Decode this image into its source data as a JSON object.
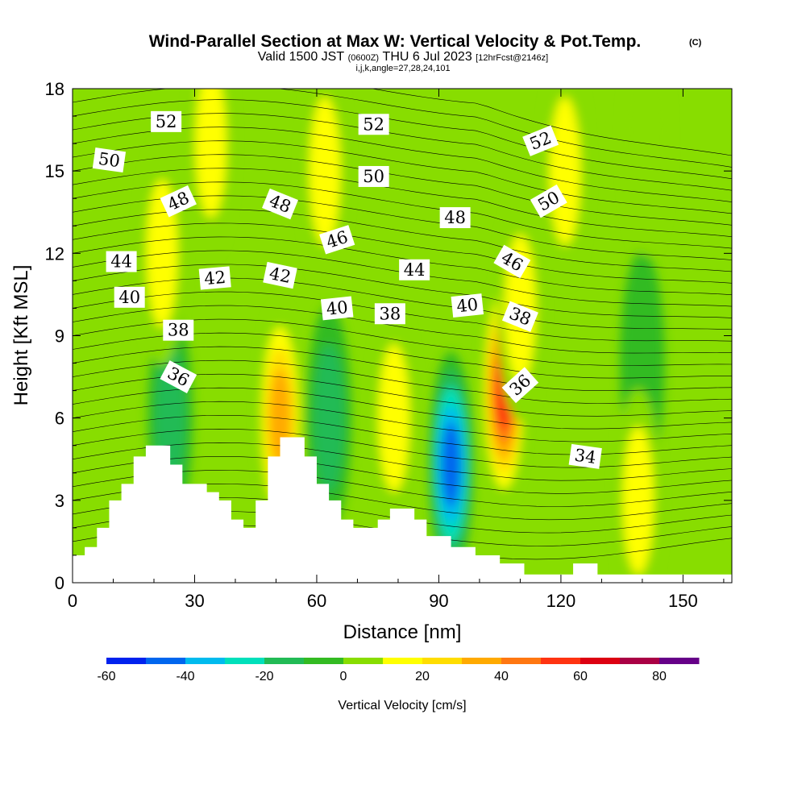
{
  "chart_data": {
    "type": "heatmap",
    "title": "Wind-Parallel Section at Max W: Vertical Velocity & Pot.Temp.",
    "title_suffix": "(C)",
    "subtitle": {
      "valid": "Valid 1500 JST",
      "utc": "(0600Z)",
      "date": "THU 6 Jul 2023",
      "forecast": "[12hrFcst@2146z]"
    },
    "meta_line": "i,j,k,angle=27,28,24,101",
    "xlabel": "Distance [nm]",
    "ylabel": "Height [Kft MSL]",
    "xlim": [
      0,
      162
    ],
    "ylim": [
      0,
      18
    ],
    "x_ticks": [
      "0",
      "30",
      "60",
      "90",
      "120",
      "150"
    ],
    "y_ticks": [
      "0",
      "3",
      "6",
      "9",
      "12",
      "15",
      "18"
    ],
    "colorbar": {
      "label": "Vertical Velocity [cm/s]",
      "tick_labels": [
        "-60",
        "-40",
        "-20",
        "0",
        "20",
        "40",
        "60",
        "80"
      ],
      "levels": [
        -60,
        -50,
        -40,
        -30,
        -20,
        -10,
        0,
        10,
        20,
        30,
        40,
        50,
        60,
        70,
        80,
        90
      ],
      "colors": [
        "#0022ee",
        "#0066ee",
        "#00bbee",
        "#00e0bb",
        "#22bb55",
        "#33bb22",
        "#88dd00",
        "#ffff00",
        "#ffdd00",
        "#ffaa00",
        "#ff7711",
        "#ff3311",
        "#dd0011",
        "#aa0044",
        "#660088"
      ]
    },
    "shading_labels": [
      "-60",
      "-40",
      "-20",
      "0",
      "20",
      "40",
      "60",
      "80"
    ],
    "updrafts_downdrafts": [
      {
        "x": 51,
        "z": 6,
        "w": 45
      },
      {
        "x": 106,
        "z": 7,
        "w": 65
      },
      {
        "x": 79,
        "z": 6,
        "w": 25
      },
      {
        "x": 93,
        "z": 4.3,
        "w": -55
      },
      {
        "x": 63,
        "z": 6,
        "w": -20
      },
      {
        "x": 24,
        "z": 6,
        "w": -25
      },
      {
        "x": 140,
        "z": 8,
        "w": -18
      },
      {
        "x": 110,
        "z": 10,
        "w": 20
      },
      {
        "x": 34,
        "z": 16,
        "w": 20
      },
      {
        "x": 22,
        "z": 12,
        "w": 20
      },
      {
        "x": 62,
        "z": 15,
        "w": 20
      },
      {
        "x": 121,
        "z": 15,
        "w": 20
      },
      {
        "x": 141,
        "z": 16,
        "w": 18
      },
      {
        "x": 139,
        "z": 3,
        "w": 20
      }
    ],
    "theta_contour_labels": [
      {
        "text": "52",
        "x": 23,
        "z": 16.8,
        "angle": 0
      },
      {
        "text": "52",
        "x": 74,
        "z": 16.7,
        "angle": 0
      },
      {
        "text": "52",
        "x": 115,
        "z": 16.1,
        "angle": -22
      },
      {
        "text": "50",
        "x": 9,
        "z": 15.4,
        "angle": 8
      },
      {
        "text": "50",
        "x": 74,
        "z": 14.8,
        "angle": 0
      },
      {
        "text": "50",
        "x": 117,
        "z": 13.9,
        "angle": -30
      },
      {
        "text": "48",
        "x": 26,
        "z": 13.9,
        "angle": -25
      },
      {
        "text": "48",
        "x": 51,
        "z": 13.8,
        "angle": 22
      },
      {
        "text": "48",
        "x": 94,
        "z": 13.3,
        "angle": 0
      },
      {
        "text": "46",
        "x": 65,
        "z": 12.5,
        "angle": -18
      },
      {
        "text": "46",
        "x": 108,
        "z": 11.7,
        "angle": 30
      },
      {
        "text": "44",
        "x": 12,
        "z": 11.7,
        "angle": 0
      },
      {
        "text": "44",
        "x": 84,
        "z": 11.4,
        "angle": 0
      },
      {
        "text": "42",
        "x": 35,
        "z": 11.1,
        "angle": -5
      },
      {
        "text": "42",
        "x": 51,
        "z": 11.2,
        "angle": 12
      },
      {
        "text": "40",
        "x": 14,
        "z": 10.4,
        "angle": 0
      },
      {
        "text": "40",
        "x": 65,
        "z": 10.0,
        "angle": -6
      },
      {
        "text": "40",
        "x": 97,
        "z": 10.1,
        "angle": -6
      },
      {
        "text": "38",
        "x": 26,
        "z": 9.2,
        "angle": 0
      },
      {
        "text": "38",
        "x": 78,
        "z": 9.8,
        "angle": 0
      },
      {
        "text": "38",
        "x": 110,
        "z": 9.7,
        "angle": 22
      },
      {
        "text": "36",
        "x": 26,
        "z": 7.5,
        "angle": 28
      },
      {
        "text": "36",
        "x": 110,
        "z": 7.2,
        "angle": -42
      },
      {
        "text": "34",
        "x": 126,
        "z": 4.6,
        "angle": 8
      }
    ],
    "terrain_heights_kft": [
      1.0,
      1.3,
      2.0,
      3.0,
      3.6,
      4.6,
      5.0,
      4.3,
      3.6,
      3.3,
      3.0,
      2.3,
      2.0,
      3.0,
      4.6,
      5.3,
      4.6,
      3.6,
      3.0,
      2.3,
      2.0,
      2.3,
      2.7,
      2.3,
      1.7,
      1.3,
      1.0,
      0.7,
      0.3,
      0.3,
      0.7,
      0.3,
      0.3
    ],
    "terrain_x_nm": [
      0,
      3,
      6,
      9,
      12,
      15,
      18,
      24,
      27,
      33,
      36,
      39,
      42,
      45,
      48,
      51,
      57,
      60,
      63,
      66,
      69,
      75,
      78,
      84,
      87,
      93,
      99,
      105,
      111,
      117,
      123,
      129,
      162
    ]
  }
}
